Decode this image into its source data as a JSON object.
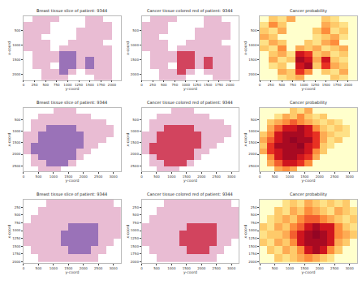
{
  "chart_data": [
    {
      "type": "heatmap",
      "titles": [
        "Breast tissue slice of patient: 9344",
        "Cancer tissue colored red of patient: 9344",
        "Cancer probability"
      ],
      "x_label": "y-coord",
      "y_label": "x-coord",
      "x": [
        100,
        300,
        500,
        700,
        900,
        1100,
        1300,
        1500,
        1700,
        1900,
        2100
      ],
      "y": [
        100,
        300,
        500,
        700,
        900,
        1100,
        1300,
        1500,
        1700,
        1900,
        2100
      ],
      "xlim": [
        0,
        2200
      ],
      "ylim": [
        2200,
        0
      ],
      "xticks": [
        0,
        250,
        500,
        750,
        1000,
        1250,
        1500,
        1750,
        2000
      ],
      "yticks": [
        500,
        1000,
        1500,
        2000
      ],
      "zlim": [
        0,
        1
      ],
      "tissue": [
        [
          null,
          0,
          0,
          0,
          null,
          null,
          null,
          0,
          0,
          null,
          null
        ],
        [
          0,
          0,
          0,
          null,
          null,
          null,
          null,
          0,
          0,
          0,
          null
        ],
        [
          0,
          0,
          0,
          null,
          null,
          null,
          0,
          0,
          0,
          0,
          null
        ],
        [
          0,
          0,
          null,
          null,
          null,
          null,
          0,
          0,
          0,
          0,
          null
        ],
        [
          0,
          0,
          0,
          null,
          null,
          0,
          0,
          0,
          0,
          null,
          null
        ],
        [
          0,
          0,
          0,
          null,
          0,
          0,
          0,
          0,
          0,
          0,
          null
        ],
        [
          null,
          0,
          0,
          0,
          1,
          1,
          0,
          0,
          0,
          0,
          null
        ],
        [
          null,
          0,
          0,
          0,
          1,
          1,
          0,
          1,
          0,
          0,
          null
        ],
        [
          null,
          0,
          0,
          null,
          1,
          1,
          0,
          1,
          0,
          0,
          null
        ],
        [
          null,
          null,
          0,
          0,
          1,
          0,
          null,
          0,
          0,
          0,
          null
        ],
        [
          null,
          null,
          0,
          0,
          0,
          null,
          null,
          null,
          0,
          0,
          null
        ]
      ],
      "probability": [
        [
          null,
          0.3,
          0.2,
          0.4,
          null,
          null,
          null,
          0.3,
          0.2,
          null,
          null
        ],
        [
          0.2,
          0.5,
          0.3,
          null,
          null,
          null,
          null,
          0.4,
          0.3,
          0.2,
          null
        ],
        [
          0.3,
          0.2,
          0.4,
          null,
          null,
          null,
          0.3,
          0.5,
          0.2,
          0.3,
          null
        ],
        [
          0.4,
          0.3,
          null,
          null,
          null,
          null,
          0.2,
          0.3,
          0.4,
          0.2,
          null
        ],
        [
          0.2,
          0.4,
          0.3,
          null,
          null,
          0.3,
          0.2,
          0.4,
          0.5,
          null,
          null
        ],
        [
          0.3,
          0.2,
          0.5,
          null,
          0.4,
          0.3,
          0.4,
          0.2,
          0.3,
          0.4,
          null
        ],
        [
          null,
          0.3,
          0.4,
          0.2,
          0.8,
          0.7,
          0.3,
          0.4,
          0.2,
          0.3,
          null
        ],
        [
          null,
          0.4,
          0.2,
          0.3,
          0.9,
          0.8,
          0.4,
          0.8,
          0.3,
          0.2,
          null
        ],
        [
          null,
          0.2,
          0.3,
          null,
          0.8,
          0.9,
          0.3,
          0.7,
          0.4,
          0.3,
          null
        ],
        [
          null,
          null,
          0.4,
          0.3,
          0.7,
          0.5,
          null,
          0.3,
          0.2,
          0.4,
          null
        ],
        [
          null,
          null,
          0.2,
          0.3,
          0.4,
          null,
          null,
          null,
          0.3,
          0.2,
          null
        ]
      ]
    },
    {
      "type": "heatmap",
      "titles": [
        "Breast tissue slice of patient: 9344",
        "Cancer tissue colored red of patient: 9344",
        "Cancer probability"
      ],
      "x_label": "y-coord",
      "y_label": "x-coord",
      "x": [
        125,
        375,
        625,
        875,
        1125,
        1375,
        1625,
        1875,
        2125,
        2375,
        2625,
        2875,
        3125
      ],
      "y": [
        125,
        375,
        625,
        875,
        1125,
        1375,
        1625,
        1875,
        2125,
        2375,
        2625
      ],
      "xlim": [
        0,
        3250
      ],
      "ylim": [
        2750,
        0
      ],
      "xticks": [
        0,
        500,
        1000,
        1500,
        2000,
        2500,
        3000
      ],
      "yticks": [
        500,
        1000,
        1500,
        2000,
        2500
      ],
      "zlim": [
        0,
        1
      ],
      "tissue": [
        [
          null,
          null,
          null,
          null,
          0,
          0,
          0,
          null,
          null,
          null,
          null,
          null,
          null
        ],
        [
          null,
          null,
          0,
          0,
          0,
          0,
          0,
          0,
          0,
          null,
          null,
          null,
          null
        ],
        [
          null,
          0,
          0,
          0,
          0,
          0,
          0,
          0,
          0,
          0,
          0,
          null,
          null
        ],
        [
          null,
          0,
          0,
          1,
          1,
          1,
          1,
          0,
          0,
          0,
          0,
          0,
          null
        ],
        [
          0,
          0,
          1,
          1,
          1,
          1,
          1,
          1,
          0,
          0,
          0,
          0,
          null
        ],
        [
          0,
          0,
          1,
          1,
          1,
          1,
          1,
          1,
          0,
          0,
          0,
          null,
          null
        ],
        [
          0,
          1,
          1,
          1,
          1,
          1,
          1,
          1,
          0,
          0,
          null,
          null,
          null
        ],
        [
          0,
          1,
          1,
          1,
          1,
          1,
          1,
          0,
          0,
          null,
          null,
          null,
          null
        ],
        [
          null,
          0,
          1,
          1,
          1,
          1,
          1,
          0,
          null,
          null,
          null,
          null,
          null
        ],
        [
          null,
          0,
          0,
          1,
          1,
          1,
          0,
          null,
          null,
          null,
          null,
          null,
          null
        ],
        [
          null,
          null,
          0,
          0,
          0,
          null,
          null,
          null,
          null,
          null,
          null,
          null,
          null
        ]
      ],
      "probability": [
        [
          null,
          null,
          null,
          null,
          0.3,
          0.2,
          0.4,
          null,
          null,
          null,
          null,
          null,
          null
        ],
        [
          null,
          null,
          0.2,
          0.4,
          0.3,
          0.5,
          0.3,
          0.2,
          0.3,
          null,
          null,
          null,
          null
        ],
        [
          null,
          0.3,
          0.4,
          0.5,
          0.6,
          0.5,
          0.4,
          0.3,
          0.2,
          0.3,
          0.2,
          null,
          null
        ],
        [
          null,
          0.4,
          0.6,
          0.8,
          0.8,
          0.9,
          0.8,
          0.5,
          0.3,
          0.2,
          0.3,
          0.2,
          null
        ],
        [
          0.3,
          0.5,
          0.8,
          0.9,
          0.9,
          0.9,
          0.8,
          0.7,
          0.4,
          0.3,
          0.2,
          0.2,
          null
        ],
        [
          0.4,
          0.6,
          0.8,
          0.9,
          0.95,
          0.9,
          0.9,
          0.7,
          0.4,
          0.2,
          0.3,
          null,
          null
        ],
        [
          0.3,
          0.7,
          0.9,
          0.9,
          0.9,
          0.95,
          0.8,
          0.7,
          0.3,
          0.2,
          null,
          null,
          null
        ],
        [
          0.4,
          0.7,
          0.8,
          0.9,
          0.9,
          0.9,
          0.8,
          0.5,
          0.3,
          null,
          null,
          null,
          null
        ],
        [
          null,
          0.5,
          0.8,
          0.9,
          0.9,
          0.8,
          0.7,
          0.4,
          null,
          null,
          null,
          null,
          null
        ],
        [
          null,
          0.4,
          0.6,
          0.8,
          0.8,
          0.7,
          0.5,
          null,
          null,
          null,
          null,
          null,
          null
        ],
        [
          null,
          null,
          0.4,
          0.5,
          0.4,
          null,
          null,
          null,
          null,
          null,
          null,
          null,
          null
        ]
      ]
    },
    {
      "type": "heatmap",
      "titles": [
        "Breast tissue slice of patient: 9344",
        "Cancer tissue colored red of patient: 9344",
        "Cancer probability"
      ],
      "x_label": "y-coord",
      "y_label": "x-coord",
      "x": [
        125,
        375,
        625,
        875,
        1125,
        1375,
        1625,
        1875,
        2125,
        2375,
        2625,
        2875,
        3125
      ],
      "y": [
        125,
        375,
        625,
        875,
        1125,
        1375,
        1625,
        1875
      ],
      "xlim": [
        0,
        3250
      ],
      "ylim": [
        2050,
        0
      ],
      "xticks": [
        0,
        500,
        1000,
        1500,
        2000,
        2500,
        3000
      ],
      "yticks": [
        250,
        500,
        750,
        1000,
        1250,
        1500,
        1750,
        2000
      ],
      "zlim": [
        0,
        1
      ],
      "tissue": [
        [
          null,
          null,
          null,
          0,
          0,
          0,
          0,
          0,
          0,
          0,
          0,
          0,
          null
        ],
        [
          null,
          null,
          0,
          0,
          0,
          0,
          0,
          0,
          0,
          0,
          0,
          0,
          0
        ],
        [
          null,
          0,
          0,
          0,
          0,
          0,
          0,
          0,
          0,
          0,
          0,
          0,
          0
        ],
        [
          0,
          0,
          0,
          0,
          0,
          0,
          1,
          1,
          1,
          1,
          0,
          0,
          0
        ],
        [
          0,
          0,
          0,
          0,
          0,
          1,
          1,
          1,
          1,
          1,
          0,
          0,
          0
        ],
        [
          0,
          0,
          0,
          0,
          0,
          1,
          1,
          1,
          1,
          1,
          0,
          0,
          null
        ],
        [
          null,
          0,
          0,
          0,
          0,
          0,
          1,
          1,
          1,
          0,
          0,
          null,
          null
        ],
        [
          null,
          null,
          0,
          0,
          0,
          0,
          0,
          0,
          0,
          0,
          null,
          null,
          null
        ]
      ],
      "probability": [
        [
          null,
          null,
          null,
          0.2,
          0.3,
          0.2,
          0.4,
          0.3,
          0.2,
          0.3,
          0.2,
          0.3,
          null
        ],
        [
          null,
          null,
          0.3,
          0.2,
          0.4,
          0.3,
          0.5,
          0.4,
          0.3,
          0.2,
          0.4,
          0.3,
          0.2
        ],
        [
          null,
          0.2,
          0.3,
          0.4,
          0.3,
          0.5,
          0.6,
          0.6,
          0.5,
          0.4,
          0.3,
          0.2,
          0.3
        ],
        [
          0.3,
          0.2,
          0.4,
          0.3,
          0.5,
          0.6,
          0.8,
          0.9,
          0.8,
          0.8,
          0.5,
          0.3,
          0.2
        ],
        [
          0.2,
          0.3,
          0.3,
          0.4,
          0.6,
          0.8,
          0.9,
          0.95,
          0.9,
          0.8,
          0.5,
          0.4,
          0.3
        ],
        [
          0.3,
          0.2,
          0.4,
          0.3,
          0.5,
          0.8,
          0.9,
          0.9,
          0.9,
          0.8,
          0.4,
          0.3,
          null
        ],
        [
          null,
          0.3,
          0.2,
          0.4,
          0.3,
          0.5,
          0.8,
          0.9,
          0.8,
          0.5,
          0.3,
          null,
          null
        ],
        [
          null,
          null,
          0.3,
          0.2,
          0.3,
          0.4,
          0.5,
          0.4,
          0.3,
          0.2,
          null,
          null,
          null
        ]
      ]
    }
  ]
}
